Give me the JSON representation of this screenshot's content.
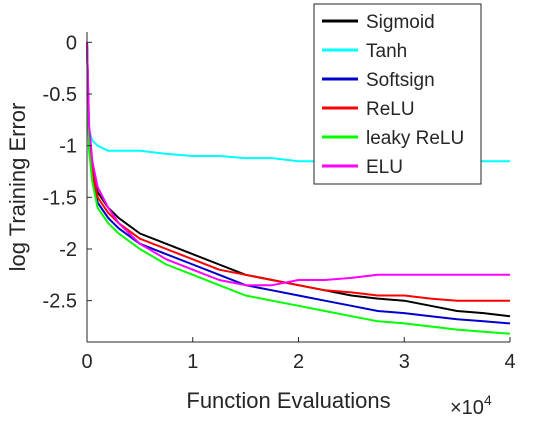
{
  "chart_data": {
    "type": "line",
    "title": "",
    "xlabel": "Function Evaluations",
    "ylabel": "log Training Error",
    "x_scale_label": "×10",
    "x_scale_exponent": "4",
    "xlim": [
      0,
      4
    ],
    "ylim": [
      -2.9,
      0.1
    ],
    "x_ticks": [
      0,
      1,
      2,
      3,
      4
    ],
    "x_tick_labels": [
      "0",
      "1",
      "2",
      "3",
      "4"
    ],
    "y_ticks": [
      0,
      -0.5,
      -1,
      -1.5,
      -2,
      -2.5
    ],
    "y_tick_labels": [
      "0",
      "-0.5",
      "-1",
      "-1.5",
      "-2",
      "-2.5"
    ],
    "grid": false,
    "legend_position": "top-right",
    "series": [
      {
        "name": "Sigmoid",
        "color": "#000000",
        "x": [
          0,
          0.02,
          0.05,
          0.1,
          0.2,
          0.3,
          0.5,
          0.75,
          1,
          1.25,
          1.5,
          1.75,
          2,
          2.25,
          2.5,
          2.75,
          3,
          3.25,
          3.5,
          3.75,
          4
        ],
        "y": [
          0,
          -0.9,
          -1.2,
          -1.45,
          -1.6,
          -1.7,
          -1.85,
          -1.95,
          -2.05,
          -2.15,
          -2.25,
          -2.3,
          -2.35,
          -2.4,
          -2.45,
          -2.48,
          -2.5,
          -2.55,
          -2.6,
          -2.62,
          -2.65
        ]
      },
      {
        "name": "Tanh",
        "color": "#00ffff",
        "x": [
          0,
          0.02,
          0.05,
          0.1,
          0.2,
          0.3,
          0.5,
          0.75,
          1,
          1.25,
          1.5,
          1.75,
          2,
          2.25,
          2.5,
          2.75,
          3,
          3.25,
          3.5,
          3.75,
          4
        ],
        "y": [
          0,
          -0.85,
          -0.95,
          -1.0,
          -1.05,
          -1.05,
          -1.05,
          -1.08,
          -1.1,
          -1.1,
          -1.12,
          -1.12,
          -1.15,
          -1.15,
          -1.15,
          -1.15,
          -1.15,
          -1.15,
          -1.15,
          -1.15,
          -1.15
        ]
      },
      {
        "name": "Softsign",
        "color": "#0000cc",
        "x": [
          0,
          0.02,
          0.05,
          0.1,
          0.2,
          0.3,
          0.5,
          0.75,
          1,
          1.25,
          1.5,
          1.75,
          2,
          2.25,
          2.5,
          2.75,
          3,
          3.25,
          3.5,
          3.75,
          4
        ],
        "y": [
          0,
          -1.0,
          -1.3,
          -1.55,
          -1.7,
          -1.8,
          -1.95,
          -2.05,
          -2.15,
          -2.25,
          -2.35,
          -2.4,
          -2.45,
          -2.5,
          -2.55,
          -2.6,
          -2.62,
          -2.65,
          -2.68,
          -2.7,
          -2.72
        ]
      },
      {
        "name": "ReLU",
        "color": "#ff0000",
        "x": [
          0,
          0.02,
          0.05,
          0.1,
          0.2,
          0.3,
          0.5,
          0.75,
          1,
          1.25,
          1.5,
          1.75,
          2,
          2.25,
          2.5,
          2.75,
          3,
          3.25,
          3.5,
          3.75,
          4
        ],
        "y": [
          0,
          -0.95,
          -1.25,
          -1.5,
          -1.65,
          -1.75,
          -1.9,
          -2.0,
          -2.1,
          -2.2,
          -2.25,
          -2.3,
          -2.35,
          -2.4,
          -2.42,
          -2.45,
          -2.45,
          -2.48,
          -2.5,
          -2.5,
          -2.5
        ]
      },
      {
        "name": "leaky ReLU",
        "color": "#00ff00",
        "x": [
          0,
          0.02,
          0.05,
          0.1,
          0.2,
          0.3,
          0.5,
          0.75,
          1,
          1.25,
          1.5,
          1.75,
          2,
          2.25,
          2.5,
          2.75,
          3,
          3.25,
          3.5,
          3.75,
          4
        ],
        "y": [
          0,
          -1.05,
          -1.35,
          -1.6,
          -1.75,
          -1.85,
          -2.0,
          -2.15,
          -2.25,
          -2.35,
          -2.45,
          -2.5,
          -2.55,
          -2.6,
          -2.65,
          -2.7,
          -2.72,
          -2.75,
          -2.78,
          -2.8,
          -2.82
        ]
      },
      {
        "name": "ELU",
        "color": "#ff00ff",
        "x": [
          0,
          0.02,
          0.05,
          0.1,
          0.2,
          0.3,
          0.5,
          0.75,
          1,
          1.25,
          1.5,
          1.75,
          2,
          2.25,
          2.5,
          2.75,
          3,
          3.25,
          3.5,
          3.75,
          4
        ],
        "y": [
          0,
          -0.8,
          -1.15,
          -1.4,
          -1.6,
          -1.75,
          -1.95,
          -2.1,
          -2.2,
          -2.3,
          -2.35,
          -2.35,
          -2.3,
          -2.3,
          -2.28,
          -2.25,
          -2.25,
          -2.25,
          -2.25,
          -2.25,
          -2.25
        ]
      }
    ]
  }
}
